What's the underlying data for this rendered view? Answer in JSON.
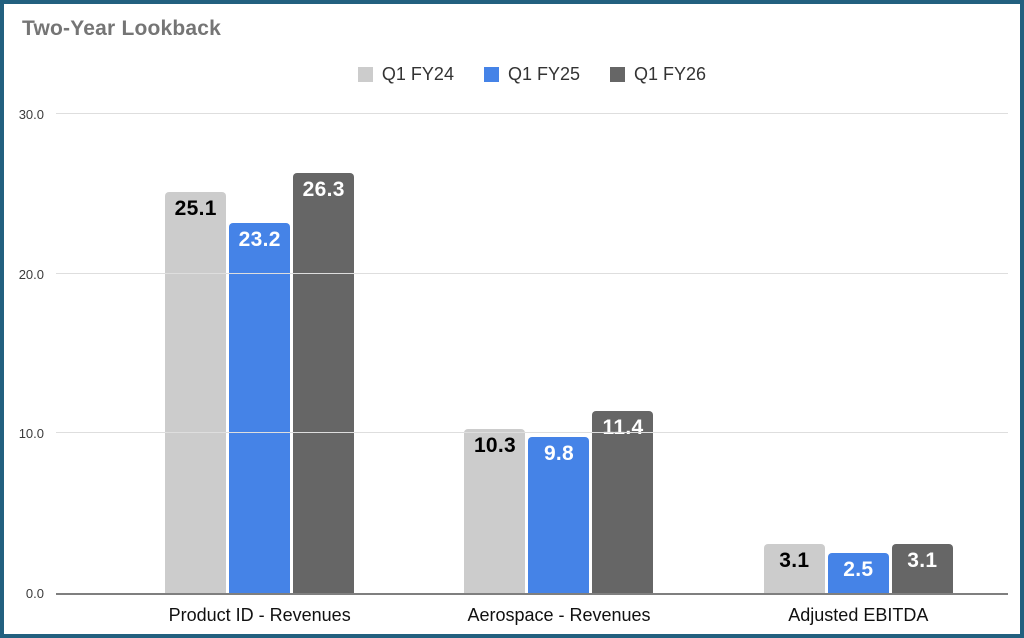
{
  "colors": {
    "frame_border": "#22607f",
    "background": "#ffffff",
    "title_text": "#757575",
    "legend_text": "#333333",
    "axis_text": "#3c3c3c",
    "category_text": "#111111",
    "gridline": "#dedede",
    "baseline": "#7f7f7f"
  },
  "chart_data": {
    "type": "bar",
    "title": "Two-Year Lookback",
    "xlabel": "",
    "ylabel": "",
    "categories": [
      "Product ID - Revenues",
      "Aerospace - Revenues",
      "Adjusted EBITDA"
    ],
    "series": [
      {
        "name": "Q1 FY24",
        "color": "#cccccc",
        "label_color": "#000000",
        "values": [
          25.1,
          10.3,
          3.1
        ]
      },
      {
        "name": "Q1 FY25",
        "color": "#4583e7",
        "label_color": "#ffffff",
        "values": [
          23.2,
          9.8,
          2.5
        ]
      },
      {
        "name": "Q1 FY26",
        "color": "#666666",
        "label_color": "#ffffff",
        "values": [
          26.3,
          11.4,
          3.1
        ]
      }
    ],
    "ylim": [
      0,
      30
    ],
    "y_ticks": [
      0,
      10,
      20,
      30
    ],
    "y_tick_labels": [
      "0.0",
      "10.0",
      "20.0",
      "30.0"
    ],
    "grid": true,
    "legend_position": "top"
  }
}
